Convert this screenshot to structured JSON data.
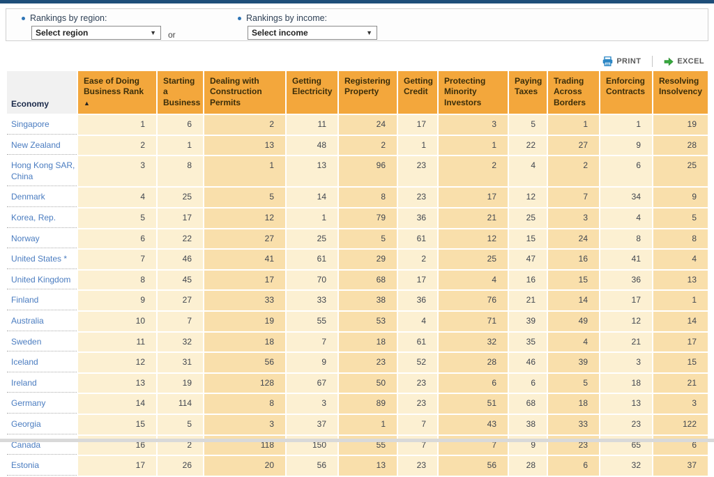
{
  "filters": {
    "region_label": "Rankings by region:",
    "region_select_value": "Select region",
    "or_label": "or",
    "income_label": "Rankings by income:",
    "income_select_value": "Select income",
    "caret": "▼"
  },
  "toolbar": {
    "print_label": "PRINT",
    "excel_label": "EXCEL"
  },
  "colors": {
    "top_bar_navy": "#1E4E79",
    "header_orange": "#F3A73C",
    "cell_light": "#FCF0D2",
    "cell_dark": "#F9DFAB",
    "economy_link_blue": "#4A7CC0",
    "bullet_blue": "#2E75B6",
    "print_icon_blue": "#2C87C5",
    "excel_icon_green": "#36A83D"
  },
  "table": {
    "economy_header": "Economy",
    "sort_arrow": "▲",
    "columns": [
      {
        "label": "Ease of Doing Business Rank",
        "sorted": true
      },
      {
        "label": "Starting a Business"
      },
      {
        "label": "Dealing with Construction Permits"
      },
      {
        "label": "Getting Electricity"
      },
      {
        "label": "Registering Property"
      },
      {
        "label": "Getting Credit"
      },
      {
        "label": "Protecting Minority Investors"
      },
      {
        "label": "Paying Taxes"
      },
      {
        "label": "Trading Across Borders"
      },
      {
        "label": "Enforcing Contracts"
      },
      {
        "label": "Resolving Insolvency"
      }
    ],
    "rows": [
      {
        "economy": "Singapore",
        "values": [
          1,
          6,
          2,
          11,
          24,
          17,
          3,
          5,
          1,
          1,
          19
        ]
      },
      {
        "economy": "New Zealand",
        "values": [
          2,
          1,
          13,
          48,
          2,
          1,
          1,
          22,
          27,
          9,
          28
        ]
      },
      {
        "economy": "Hong Kong SAR, China",
        "values": [
          3,
          8,
          1,
          13,
          96,
          23,
          2,
          4,
          2,
          6,
          25
        ]
      },
      {
        "economy": "Denmark",
        "values": [
          4,
          25,
          5,
          14,
          8,
          23,
          17,
          12,
          7,
          34,
          9
        ]
      },
      {
        "economy": "Korea, Rep.",
        "values": [
          5,
          17,
          12,
          1,
          79,
          36,
          21,
          25,
          3,
          4,
          5
        ]
      },
      {
        "economy": "Norway",
        "values": [
          6,
          22,
          27,
          25,
          5,
          61,
          12,
          15,
          24,
          8,
          8
        ]
      },
      {
        "economy": "United States *",
        "values": [
          7,
          46,
          41,
          61,
          29,
          2,
          25,
          47,
          16,
          41,
          4
        ]
      },
      {
        "economy": "United Kingdom",
        "values": [
          8,
          45,
          17,
          70,
          68,
          17,
          4,
          16,
          15,
          36,
          13
        ]
      },
      {
        "economy": "Finland",
        "values": [
          9,
          27,
          33,
          33,
          38,
          36,
          76,
          21,
          14,
          17,
          1
        ]
      },
      {
        "economy": "Australia",
        "values": [
          10,
          7,
          19,
          55,
          53,
          4,
          71,
          39,
          49,
          12,
          14
        ]
      },
      {
        "economy": "Sweden",
        "values": [
          11,
          32,
          18,
          7,
          18,
          61,
          32,
          35,
          4,
          21,
          17
        ]
      },
      {
        "economy": "Iceland",
        "values": [
          12,
          31,
          56,
          9,
          23,
          52,
          28,
          46,
          39,
          3,
          15
        ]
      },
      {
        "economy": "Ireland",
        "values": [
          13,
          19,
          128,
          67,
          50,
          23,
          6,
          6,
          5,
          18,
          21
        ]
      },
      {
        "economy": "Germany",
        "values": [
          14,
          114,
          8,
          3,
          89,
          23,
          51,
          68,
          18,
          13,
          3
        ]
      },
      {
        "economy": "Georgia",
        "values": [
          15,
          5,
          3,
          37,
          1,
          7,
          43,
          38,
          33,
          23,
          122
        ]
      },
      {
        "economy": "Canada",
        "values": [
          16,
          2,
          118,
          150,
          55,
          7,
          7,
          9,
          23,
          65,
          6
        ]
      },
      {
        "economy": "Estonia",
        "values": [
          17,
          26,
          20,
          56,
          13,
          23,
          56,
          28,
          6,
          32,
          37
        ]
      }
    ]
  }
}
